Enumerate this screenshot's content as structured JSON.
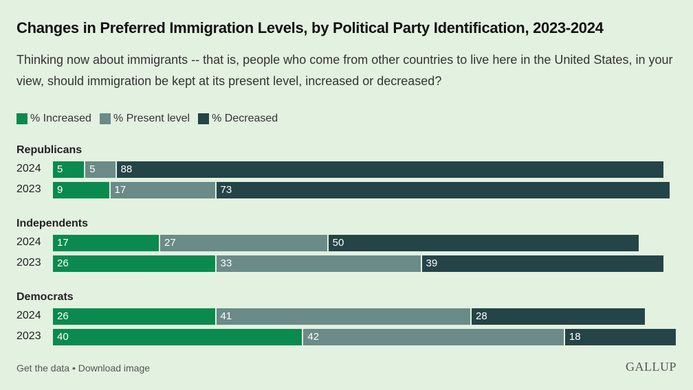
{
  "chart_data": {
    "type": "bar",
    "orientation": "horizontal",
    "stacked": true,
    "title": "Changes in Preferred Immigration Levels, by Political Party Identification, 2023-2024",
    "subtitle": "Thinking now about immigrants -- that is, people who come from other countries to live here in the United States, in your view, should immigration be kept at its present level, increased or decreased?",
    "legend": [
      {
        "name": "% Increased",
        "color": "#0a8a4e"
      },
      {
        "name": "% Present level",
        "color": "#6a8b87"
      },
      {
        "name": "% Decreased",
        "color": "#254447"
      }
    ],
    "legend_position": "top-left",
    "groups": [
      {
        "name": "Republicans",
        "rows": [
          {
            "label": "2024",
            "values": [
              5,
              5,
              88
            ]
          },
          {
            "label": "2023",
            "values": [
              9,
              17,
              73
            ]
          }
        ]
      },
      {
        "name": "Independents",
        "rows": [
          {
            "label": "2024",
            "values": [
              17,
              27,
              50
            ]
          },
          {
            "label": "2023",
            "values": [
              26,
              33,
              39
            ]
          }
        ]
      },
      {
        "name": "Democrats",
        "rows": [
          {
            "label": "2024",
            "values": [
              26,
              41,
              28
            ]
          },
          {
            "label": "2023",
            "values": [
              40,
              42,
              18
            ]
          }
        ]
      }
    ],
    "xlim": [
      0,
      100
    ]
  },
  "footer": {
    "get_data": "Get the data",
    "separator": "•",
    "download": "Download image",
    "logo": "GALLUP"
  }
}
